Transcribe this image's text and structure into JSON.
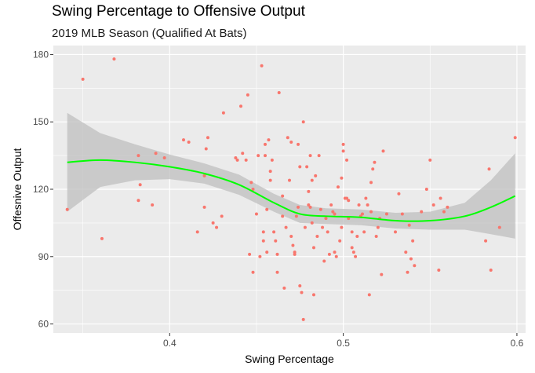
{
  "colors": {
    "panel_background": "#ebebeb",
    "grid_major": "#ffffff",
    "points": "#f8766d",
    "smooth_line": "#00ff00",
    "confidence_band": "#bfbfbf"
  },
  "chart_data": {
    "type": "scatter",
    "title": "Swing Percentage to Offensive Output",
    "subtitle": "2019 MLB Season (Qualified At Bats)",
    "xlabel": "Swing Percentage",
    "ylabel": "Offesnive Output",
    "xlim": [
      0.333,
      0.605
    ],
    "ylim": [
      56,
      184
    ],
    "x_ticks": [
      0.4,
      0.5,
      0.6
    ],
    "x_tick_labels": [
      "0.4",
      "0.5",
      "0.6"
    ],
    "y_ticks": [
      60,
      90,
      120,
      150,
      180
    ],
    "y_tick_labels": [
      "60",
      "90",
      "120",
      "150",
      "180"
    ],
    "grid": true,
    "legend": "none",
    "points": [
      [
        0.341,
        111
      ],
      [
        0.35,
        169
      ],
      [
        0.361,
        98
      ],
      [
        0.368,
        178
      ],
      [
        0.382,
        135
      ],
      [
        0.383,
        122
      ],
      [
        0.382,
        115
      ],
      [
        0.39,
        113
      ],
      [
        0.392,
        136
      ],
      [
        0.397,
        134
      ],
      [
        0.408,
        142
      ],
      [
        0.411,
        141
      ],
      [
        0.416,
        101
      ],
      [
        0.42,
        112
      ],
      [
        0.42,
        126
      ],
      [
        0.422,
        143
      ],
      [
        0.421,
        138
      ],
      [
        0.425,
        105
      ],
      [
        0.427,
        103
      ],
      [
        0.43,
        108
      ],
      [
        0.431,
        154
      ],
      [
        0.438,
        134
      ],
      [
        0.439,
        133
      ],
      [
        0.441,
        157
      ],
      [
        0.442,
        136
      ],
      [
        0.444,
        133
      ],
      [
        0.445,
        162
      ],
      [
        0.446,
        91
      ],
      [
        0.447,
        123
      ],
      [
        0.448,
        120
      ],
      [
        0.448,
        83
      ],
      [
        0.45,
        109
      ],
      [
        0.451,
        135
      ],
      [
        0.452,
        90
      ],
      [
        0.453,
        175
      ],
      [
        0.454,
        101
      ],
      [
        0.454,
        97
      ],
      [
        0.455,
        135
      ],
      [
        0.455,
        140
      ],
      [
        0.456,
        111
      ],
      [
        0.456,
        92
      ],
      [
        0.457,
        142
      ],
      [
        0.458,
        128
      ],
      [
        0.458,
        124
      ],
      [
        0.459,
        133
      ],
      [
        0.46,
        101
      ],
      [
        0.461,
        97
      ],
      [
        0.462,
        83
      ],
      [
        0.462,
        91
      ],
      [
        0.463,
        163
      ],
      [
        0.465,
        117
      ],
      [
        0.465,
        108
      ],
      [
        0.466,
        76
      ],
      [
        0.467,
        103
      ],
      [
        0.468,
        143
      ],
      [
        0.469,
        124
      ],
      [
        0.47,
        141
      ],
      [
        0.47,
        99
      ],
      [
        0.471,
        95
      ],
      [
        0.472,
        91
      ],
      [
        0.472,
        92
      ],
      [
        0.473,
        108
      ],
      [
        0.474,
        112
      ],
      [
        0.474,
        140
      ],
      [
        0.475,
        130
      ],
      [
        0.475,
        77
      ],
      [
        0.476,
        74
      ],
      [
        0.477,
        62
      ],
      [
        0.477,
        150
      ],
      [
        0.478,
        103
      ],
      [
        0.479,
        130
      ],
      [
        0.48,
        119
      ],
      [
        0.48,
        113
      ],
      [
        0.481,
        112
      ],
      [
        0.481,
        135
      ],
      [
        0.482,
        105
      ],
      [
        0.482,
        124
      ],
      [
        0.483,
        94
      ],
      [
        0.483,
        73
      ],
      [
        0.484,
        126
      ],
      [
        0.485,
        99
      ],
      [
        0.486,
        135
      ],
      [
        0.487,
        111
      ],
      [
        0.488,
        103
      ],
      [
        0.489,
        88
      ],
      [
        0.49,
        107
      ],
      [
        0.491,
        101
      ],
      [
        0.492,
        91
      ],
      [
        0.493,
        113
      ],
      [
        0.494,
        110
      ],
      [
        0.495,
        92
      ],
      [
        0.495,
        109
      ],
      [
        0.496,
        90
      ],
      [
        0.497,
        121
      ],
      [
        0.498,
        97
      ],
      [
        0.499,
        103
      ],
      [
        0.499,
        125
      ],
      [
        0.5,
        140
      ],
      [
        0.5,
        137
      ],
      [
        0.501,
        116
      ],
      [
        0.502,
        133
      ],
      [
        0.502,
        116
      ],
      [
        0.503,
        115
      ],
      [
        0.503,
        107
      ],
      [
        0.505,
        94
      ],
      [
        0.505,
        101
      ],
      [
        0.506,
        92
      ],
      [
        0.507,
        90
      ],
      [
        0.508,
        99
      ],
      [
        0.509,
        113
      ],
      [
        0.51,
        108
      ],
      [
        0.511,
        109
      ],
      [
        0.512,
        101
      ],
      [
        0.513,
        116
      ],
      [
        0.514,
        113
      ],
      [
        0.515,
        73
      ],
      [
        0.516,
        110
      ],
      [
        0.516,
        123
      ],
      [
        0.517,
        129
      ],
      [
        0.518,
        132
      ],
      [
        0.519,
        99
      ],
      [
        0.52,
        103
      ],
      [
        0.521,
        107
      ],
      [
        0.522,
        82
      ],
      [
        0.523,
        137
      ],
      [
        0.525,
        109
      ],
      [
        0.53,
        101
      ],
      [
        0.532,
        118
      ],
      [
        0.534,
        109
      ],
      [
        0.536,
        92
      ],
      [
        0.537,
        83
      ],
      [
        0.538,
        104
      ],
      [
        0.539,
        89
      ],
      [
        0.54,
        97
      ],
      [
        0.541,
        86
      ],
      [
        0.545,
        110
      ],
      [
        0.548,
        120
      ],
      [
        0.55,
        133
      ],
      [
        0.552,
        113
      ],
      [
        0.555,
        84
      ],
      [
        0.556,
        116
      ],
      [
        0.558,
        110
      ],
      [
        0.56,
        112
      ],
      [
        0.582,
        97
      ],
      [
        0.584,
        129
      ],
      [
        0.585,
        84
      ],
      [
        0.59,
        103
      ],
      [
        0.599,
        143
      ]
    ],
    "smooth": {
      "x": [
        0.341,
        0.36,
        0.38,
        0.4,
        0.42,
        0.44,
        0.46,
        0.475,
        0.49,
        0.51,
        0.53,
        0.55,
        0.57,
        0.585,
        0.599
      ],
      "y": [
        132,
        133,
        132,
        130,
        127,
        122,
        114,
        109,
        108,
        107.5,
        106,
        106,
        108,
        112,
        117
      ],
      "lower": [
        110,
        121,
        124,
        124.5,
        122.5,
        117.5,
        110,
        105,
        104.5,
        104,
        102.5,
        102,
        102,
        100,
        98
      ],
      "upper": [
        154,
        145,
        140,
        135.5,
        131.5,
        126.5,
        118,
        113,
        111.5,
        111,
        109.5,
        110,
        114,
        124,
        136
      ]
    }
  }
}
